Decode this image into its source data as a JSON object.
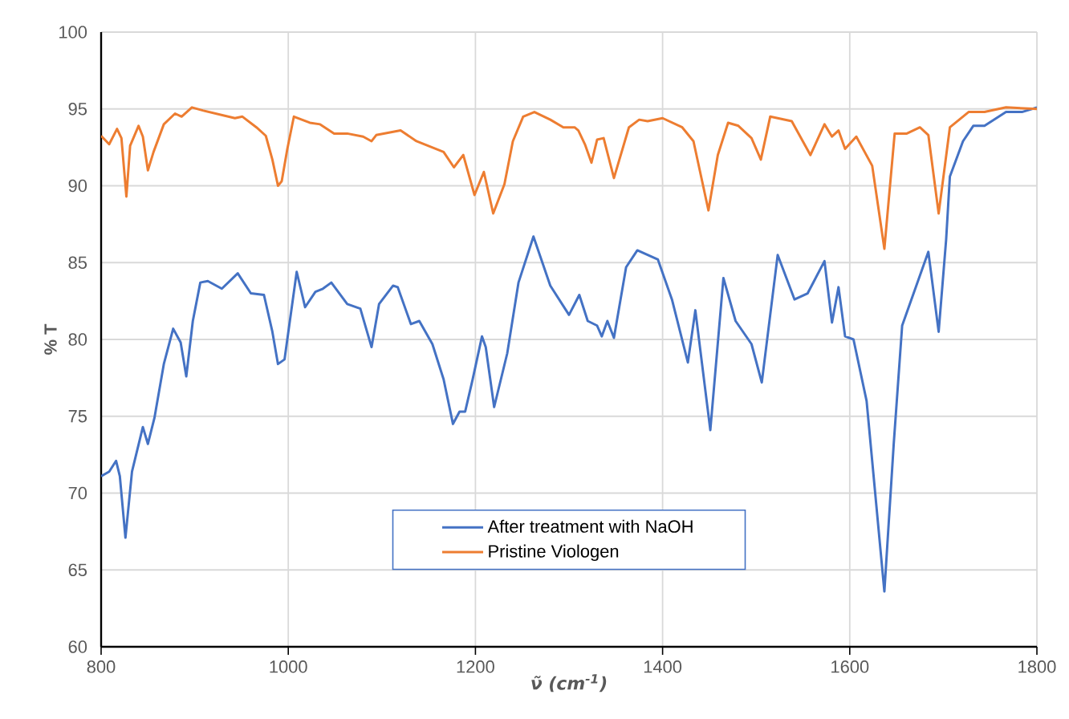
{
  "chart_data": {
    "type": "line",
    "xlabel": "ν̃ (cm$^{-1}$)",
    "ylabel": "% T",
    "xlim": [
      800,
      1800
    ],
    "xticks": [
      800,
      1000,
      1200,
      1400,
      1600,
      1800
    ],
    "ylim": [
      60,
      100
    ],
    "yticks": [
      60,
      65,
      70,
      75,
      80,
      85,
      90,
      95,
      100
    ],
    "grid": true,
    "legend": "bottom",
    "series": [
      {
        "name": "After treatment with NaOH",
        "color": "#4472c4",
        "x": [
          800,
          808.6,
          816,
          820,
          826,
          833,
          844.6,
          850,
          857,
          867,
          877,
          885,
          891,
          898,
          906,
          914,
          929,
          946,
          960,
          974,
          983,
          989,
          996,
          1001,
          1009,
          1018,
          1029,
          1037,
          1046,
          1063,
          1077,
          1089,
          1097,
          1112,
          1117,
          1131,
          1140,
          1154,
          1166,
          1176,
          1183,
          1189,
          1197,
          1207,
          1211,
          1220,
          1234,
          1246,
          1262,
          1280,
          1300,
          1311,
          1320,
          1330,
          1335,
          1341,
          1348,
          1361,
          1373,
          1395,
          1410,
          1427,
          1435,
          1451,
          1465,
          1478,
          1495,
          1506,
          1523,
          1541,
          1555,
          1573,
          1581,
          1588,
          1595,
          1604,
          1618,
          1637,
          1647,
          1656,
          1670,
          1684,
          1695,
          1703,
          1707,
          1721,
          1732,
          1744,
          1767,
          1784,
          1800
        ],
        "values": [
          71.1,
          71.4,
          72.1,
          71.1,
          67.1,
          71.4,
          74.3,
          73.2,
          74.9,
          78.4,
          80.7,
          79.8,
          77.6,
          81.2,
          83.7,
          83.8,
          83.3,
          84.3,
          83.0,
          82.9,
          80.5,
          78.4,
          78.7,
          80.9,
          84.4,
          82.1,
          83.1,
          83.3,
          83.7,
          82.3,
          82.0,
          79.5,
          82.3,
          83.5,
          83.4,
          81.0,
          81.2,
          79.7,
          77.4,
          74.5,
          75.3,
          75.3,
          77.4,
          80.2,
          79.5,
          75.6,
          79.1,
          83.7,
          86.7,
          83.5,
          81.6,
          82.9,
          81.2,
          80.9,
          80.2,
          81.2,
          80.1,
          84.7,
          85.8,
          85.2,
          82.6,
          78.5,
          81.9,
          74.1,
          84.0,
          81.2,
          79.7,
          77.2,
          85.5,
          82.6,
          83.0,
          85.1,
          81.1,
          83.4,
          80.2,
          80.0,
          76.0,
          63.6,
          73.2,
          80.9,
          83.3,
          85.7,
          80.5,
          86.5,
          90.6,
          92.9,
          93.9,
          93.9,
          94.8,
          94.8,
          95.1
        ]
      },
      {
        "name": "Pristine Viologen",
        "color": "#ed7d31",
        "x": [
          800,
          808.6,
          817,
          821.7,
          827,
          831,
          840,
          844.6,
          850,
          856,
          867,
          879,
          886,
          897,
          908.6,
          943,
          951,
          966,
          976,
          983,
          989,
          993,
          999,
          1006,
          1023,
          1034,
          1049,
          1063,
          1080,
          1089,
          1094,
          1120,
          1137,
          1166,
          1177,
          1187,
          1199,
          1209,
          1219,
          1231,
          1240,
          1251,
          1263,
          1280,
          1294,
          1306,
          1310,
          1317,
          1324,
          1330,
          1337,
          1348,
          1364,
          1375,
          1384,
          1400,
          1421,
          1433,
          1449,
          1459,
          1470,
          1481,
          1495,
          1505,
          1515,
          1538,
          1558,
          1573,
          1581,
          1588,
          1595,
          1607,
          1624,
          1637,
          1648,
          1661,
          1675,
          1684,
          1695,
          1707,
          1727,
          1744,
          1767,
          1800
        ],
        "values": [
          93.25,
          92.7,
          93.7,
          93.1,
          89.3,
          92.6,
          93.9,
          93.2,
          91.0,
          92.2,
          94.0,
          94.7,
          94.5,
          95.1,
          94.9,
          94.4,
          94.5,
          93.8,
          93.25,
          91.7,
          90.0,
          90.3,
          92.4,
          94.5,
          94.1,
          94.0,
          93.4,
          93.4,
          93.2,
          92.9,
          93.3,
          93.6,
          92.9,
          92.2,
          91.2,
          92.0,
          89.4,
          90.9,
          88.2,
          90.1,
          92.9,
          94.5,
          94.8,
          94.3,
          93.8,
          93.8,
          93.6,
          92.7,
          91.5,
          93.0,
          93.1,
          90.5,
          93.8,
          94.3,
          94.2,
          94.4,
          93.8,
          92.9,
          88.4,
          92.0,
          94.1,
          93.9,
          93.1,
          91.7,
          94.5,
          94.2,
          92.0,
          94.0,
          93.2,
          93.6,
          92.4,
          93.2,
          91.3,
          85.9,
          93.4,
          93.4,
          93.8,
          93.3,
          88.2,
          93.8,
          94.8,
          94.8,
          95.1,
          95.0
        ]
      }
    ]
  }
}
